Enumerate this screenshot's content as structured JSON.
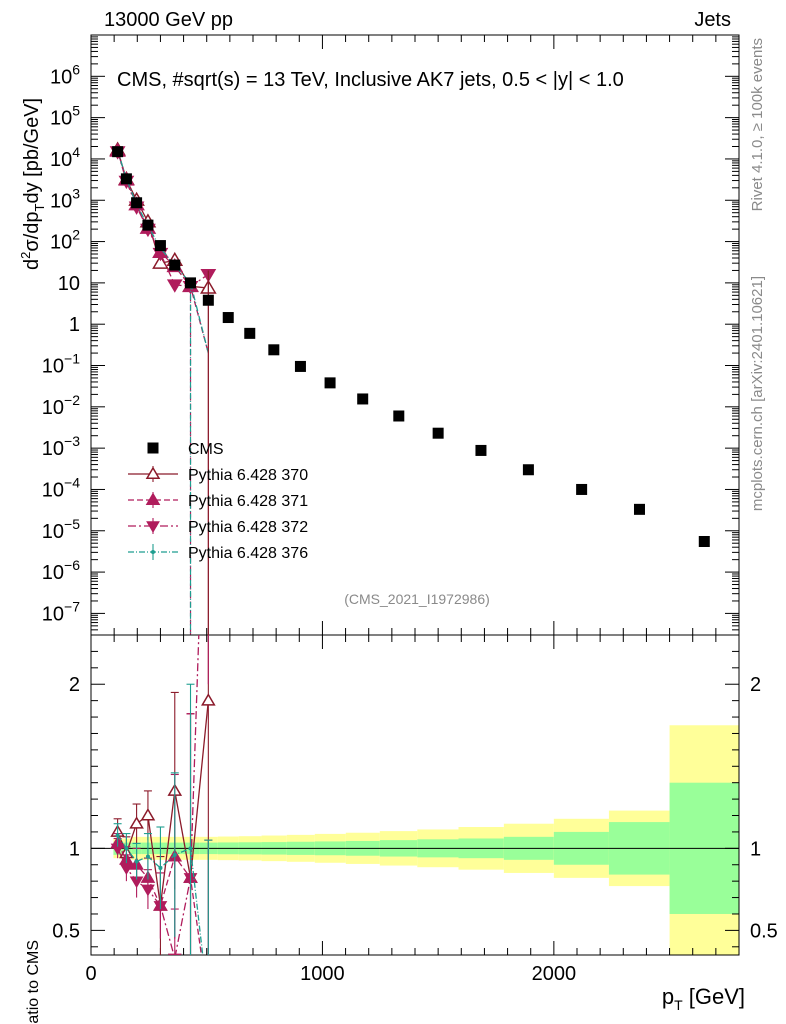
{
  "header": {
    "left": "13000 GeV pp",
    "right": "Jets"
  },
  "plot_title": "CMS, #sqrt(s) = 13 TeV, Inclusive AK7 jets, 0.5 < |y| < 1.0",
  "side_label_top": "Rivet 4.1.0, ≥ 100k events",
  "side_label_bottom": "mcplots.cern.ch [arXiv:2401.10621]",
  "analysis_tag": "(CMS_2021_I1972986)",
  "chart_data": {
    "type": "scatter",
    "title": "CMS, #sqrt(s) = 13 TeV, Inclusive AK7 jets, 0.5 < |y| < 1.0",
    "xlabel": "p_T [GeV]",
    "xlim": [
      0,
      2800
    ],
    "x_ticks": [
      "0",
      "1000",
      "2000"
    ],
    "main_panel": {
      "ylabel": "d²σ/dp_T dy [pb/GeV]",
      "yscale": "log",
      "ylim": [
        3e-08,
        10000000.0
      ],
      "y_ticks": [
        {
          "base": "10",
          "exp": "6"
        },
        {
          "base": "10",
          "exp": "5"
        },
        {
          "base": "10",
          "exp": "4"
        },
        {
          "base": "10",
          "exp": "3"
        },
        {
          "base": "10",
          "exp": "2"
        },
        {
          "base": "10",
          "exp": ""
        },
        {
          "base": "1",
          "exp": ""
        },
        {
          "base": "10",
          "exp": "−1"
        },
        {
          "base": "10",
          "exp": "−2"
        },
        {
          "base": "10",
          "exp": "−3"
        },
        {
          "base": "10",
          "exp": "−4"
        },
        {
          "base": "10",
          "exp": "−5"
        },
        {
          "base": "10",
          "exp": "−6"
        },
        {
          "base": "10",
          "exp": "−7"
        }
      ]
    },
    "ratio_panel": {
      "ylabel": "Ratio to CMS",
      "ylim": [
        0.35,
        2.3
      ],
      "y_ticks": [
        "0.5",
        "1",
        "2"
      ]
    },
    "bins": [
      {
        "lo": 97,
        "hi": 133
      },
      {
        "lo": 133,
        "hi": 174
      },
      {
        "lo": 174,
        "hi": 220
      },
      {
        "lo": 220,
        "hi": 272
      },
      {
        "lo": 272,
        "hi": 330
      },
      {
        "lo": 330,
        "hi": 395
      },
      {
        "lo": 395,
        "hi": 468
      },
      {
        "lo": 468,
        "hi": 548
      },
      {
        "lo": 548,
        "hi": 638
      },
      {
        "lo": 638,
        "hi": 737
      },
      {
        "lo": 737,
        "hi": 846
      },
      {
        "lo": 846,
        "hi": 967
      },
      {
        "lo": 967,
        "hi": 1101
      },
      {
        "lo": 1101,
        "hi": 1248
      },
      {
        "lo": 1248,
        "hi": 1410
      },
      {
        "lo": 1410,
        "hi": 1588
      },
      {
        "lo": 1588,
        "hi": 1784
      },
      {
        "lo": 1784,
        "hi": 2000
      },
      {
        "lo": 2000,
        "hi": 2238
      },
      {
        "lo": 2238,
        "hi": 2500
      },
      {
        "lo": 2500,
        "hi": 2800
      }
    ],
    "cms": {
      "name": "CMS",
      "x": [
        115,
        153,
        197,
        246,
        300,
        362,
        430,
        507,
        593,
        686,
        790,
        905,
        1033,
        1174,
        1330,
        1500,
        1685,
        1890,
        2120,
        2370,
        2650
      ],
      "y": [
        15000,
        3300,
        870,
        250,
        80,
        27,
        10,
        3.8,
        1.45,
        0.6,
        0.24,
        0.095,
        0.038,
        0.0155,
        0.006,
        0.0023,
        0.00088,
        0.0003,
        0.0001,
        3.3e-05,
        5.5e-06
      ],
      "ratio_band_stat": [
        0.04,
        0.035,
        0.035,
        0.035,
        0.035,
        0.035,
        0.035,
        0.035,
        0.036,
        0.037,
        0.038,
        0.04,
        0.042,
        0.045,
        0.05,
        0.055,
        0.06,
        0.07,
        0.1,
        0.16,
        0.4
      ],
      "ratio_band_total": [
        0.06,
        0.06,
        0.07,
        0.07,
        0.07,
        0.07,
        0.07,
        0.07,
        0.072,
        0.074,
        0.078,
        0.082,
        0.088,
        0.095,
        0.105,
        0.115,
        0.13,
        0.15,
        0.18,
        0.23,
        0.75
      ]
    },
    "series": [
      {
        "name": "Pythia 6.428 370",
        "color": "#8b1a2a",
        "marker": "triangle-up-open",
        "dash": "",
        "x": [
          115,
          153,
          197,
          246,
          300,
          362,
          430,
          507
        ],
        "y": [
          16500,
          3200,
          1000,
          300,
          30,
          35,
          8.3,
          7.5
        ],
        "ratio": [
          1.1,
          0.97,
          1.15,
          1.2,
          0.65,
          1.35,
          0.82,
          1.9
        ],
        "ratio_err": [
          0.08,
          0.1,
          0.12,
          0.15,
          0.3,
          0.6,
          1.0,
          2.0
        ]
      },
      {
        "name": "Pythia 6.428 371",
        "color": "#b01c5c",
        "marker": "triangle-up",
        "dash": "6,3",
        "x": [
          115,
          153,
          197,
          246,
          300,
          362,
          430,
          507
        ],
        "y": [
          15500,
          3100,
          780,
          210,
          55,
          25,
          8.2,
          0.2
        ],
        "ratio": [
          1.03,
          0.93,
          0.9,
          0.82,
          0.65,
          0.95,
          0.82,
          0.05
        ],
        "ratio_err": [
          0.06,
          0.08,
          0.1,
          0.12,
          0.2,
          0.5,
          1.0,
          1.0
        ]
      },
      {
        "name": "Pythia 6.428 372",
        "color": "#b01c5c",
        "marker": "triangle-down",
        "dash": "8,3,2,3",
        "x": [
          115,
          153,
          197,
          246,
          300,
          362,
          430,
          507
        ],
        "y": [
          15000,
          2900,
          690,
          200,
          52,
          9,
          8.2,
          16
        ],
        "ratio": [
          1.0,
          0.88,
          0.8,
          0.75,
          0.65,
          0.33,
          0.82,
          4.0
        ],
        "ratio_err": [
          0.06,
          0.08,
          0.1,
          0.12,
          0.2,
          0.3,
          1.0,
          2.0
        ]
      },
      {
        "name": "Pythia 6.428 376",
        "color": "#1e9e90",
        "marker": "dot",
        "dash": "6,2,1,2",
        "x": [
          115,
          153,
          197,
          246,
          300,
          362,
          430,
          507
        ],
        "y": [
          16000,
          3300,
          800,
          240,
          70,
          26,
          10,
          0.2
        ],
        "ratio": [
          1.08,
          1.0,
          0.92,
          0.95,
          0.88,
          0.96,
          1.0,
          0.05
        ],
        "ratio_err": [
          0.07,
          0.09,
          0.11,
          0.14,
          0.25,
          0.5,
          1.0,
          1.0
        ]
      }
    ]
  }
}
